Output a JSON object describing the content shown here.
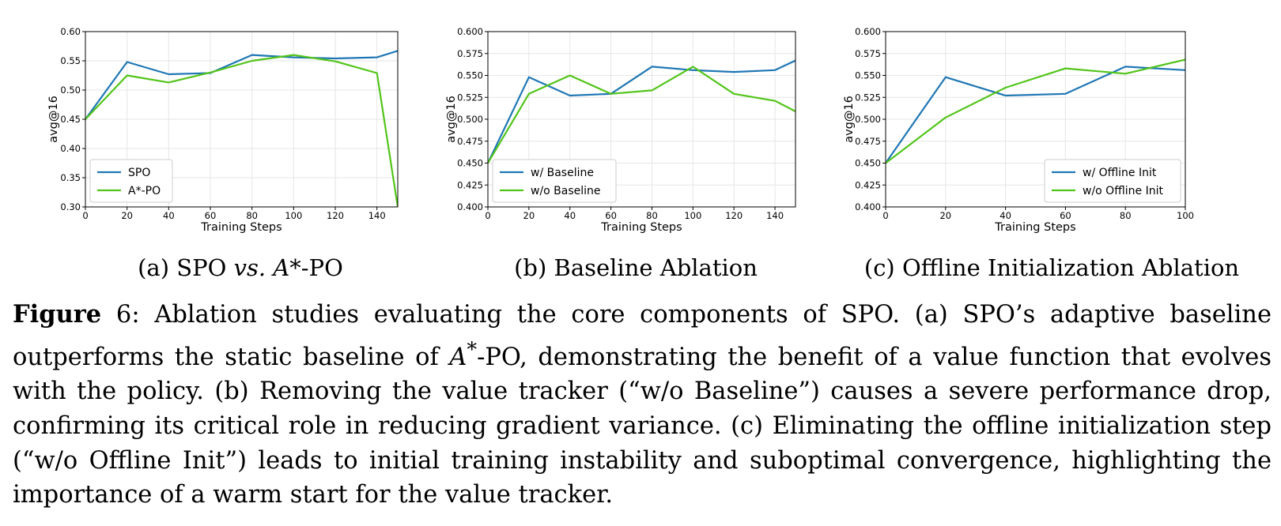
{
  "chart_data": [
    {
      "type": "line",
      "xlabel": "Training Steps",
      "ylabel": "avg@16",
      "xlim": [
        0,
        150
      ],
      "ylim": [
        0.3,
        0.6
      ],
      "xticks": [
        0,
        20,
        40,
        60,
        80,
        100,
        120,
        140
      ],
      "yticks": [
        0.3,
        0.35,
        0.4,
        0.45,
        0.5,
        0.55,
        0.6
      ],
      "ytick_decimals": 2,
      "grid": true,
      "legend": "lower-left",
      "series": [
        {
          "name": "SPO",
          "color": "#1f77b4",
          "x": [
            0,
            20,
            40,
            60,
            80,
            100,
            120,
            140,
            150
          ],
          "values": [
            0.45,
            0.548,
            0.527,
            0.529,
            0.56,
            0.556,
            0.554,
            0.556,
            0.567
          ]
        },
        {
          "name": "A*-PO",
          "color": "#52c41a",
          "x": [
            0,
            20,
            40,
            60,
            80,
            100,
            120,
            140,
            150
          ],
          "values": [
            0.45,
            0.525,
            0.513,
            0.53,
            0.55,
            0.56,
            0.549,
            0.529,
            0.3
          ]
        }
      ]
    },
    {
      "type": "line",
      "xlabel": "Training Steps",
      "ylabel": "avg@16",
      "xlim": [
        0,
        150
      ],
      "ylim": [
        0.4,
        0.6
      ],
      "xticks": [
        0,
        20,
        40,
        60,
        80,
        100,
        120,
        140
      ],
      "yticks": [
        0.4,
        0.425,
        0.45,
        0.475,
        0.5,
        0.525,
        0.55,
        0.575,
        0.6
      ],
      "ytick_decimals": 3,
      "grid": true,
      "legend": "lower-left",
      "series": [
        {
          "name": "w/ Baseline",
          "color": "#1f77b4",
          "x": [
            0,
            20,
            40,
            60,
            80,
            100,
            120,
            140,
            150
          ],
          "values": [
            0.45,
            0.548,
            0.527,
            0.529,
            0.56,
            0.556,
            0.554,
            0.556,
            0.567
          ]
        },
        {
          "name": "w/o Baseline",
          "color": "#52c41a",
          "x": [
            0,
            20,
            40,
            60,
            80,
            100,
            120,
            140,
            150
          ],
          "values": [
            0.45,
            0.529,
            0.55,
            0.529,
            0.533,
            0.56,
            0.529,
            0.521,
            0.509
          ]
        }
      ]
    },
    {
      "type": "line",
      "xlabel": "Training Steps",
      "ylabel": "avg@16",
      "xlim": [
        0,
        100
      ],
      "ylim": [
        0.4,
        0.6
      ],
      "xticks": [
        0,
        20,
        40,
        60,
        80,
        100
      ],
      "yticks": [
        0.4,
        0.425,
        0.45,
        0.475,
        0.5,
        0.525,
        0.55,
        0.575,
        0.6
      ],
      "ytick_decimals": 3,
      "grid": true,
      "legend": "lower-right",
      "series": [
        {
          "name": "w/ Offline Init",
          "color": "#1f77b4",
          "x": [
            0,
            20,
            40,
            60,
            80,
            100
          ],
          "values": [
            0.45,
            0.548,
            0.527,
            0.529,
            0.56,
            0.556
          ]
        },
        {
          "name": "w/o Offline Init",
          "color": "#52c41a",
          "x": [
            0,
            20,
            40,
            60,
            80,
            100
          ],
          "values": [
            0.45,
            0.502,
            0.536,
            0.558,
            0.552,
            0.568
          ]
        }
      ]
    }
  ],
  "subcaptions": {
    "a_prefix": "(a) SPO",
    "a_vs": "vs.",
    "a_suffix": "-PO",
    "a_symbol": "A*",
    "b": "(b) Baseline Ablation",
    "c": "(c) Offline Initialization Ablation"
  },
  "caption": {
    "label": "Figure",
    "number": " 6",
    "part1": ": Ablation studies evaluating the core components of SPO. (a) SPO’s adaptive baseline outperforms the static baseline of ",
    "symbol": "A",
    "symbol_sup": "*",
    "part2": "-PO, demonstrating the benefit of a value function that evolves with the policy. (b) Removing the value tracker (“w/o Baseline”) causes a severe performance drop, confirming its critical role in reducing gradient variance. (c) Eliminating the offline initialization step (“w/o Offline Init”) leads to initial training instability and suboptimal convergence, highlighting the importance of a warm start for the value tracker."
  }
}
